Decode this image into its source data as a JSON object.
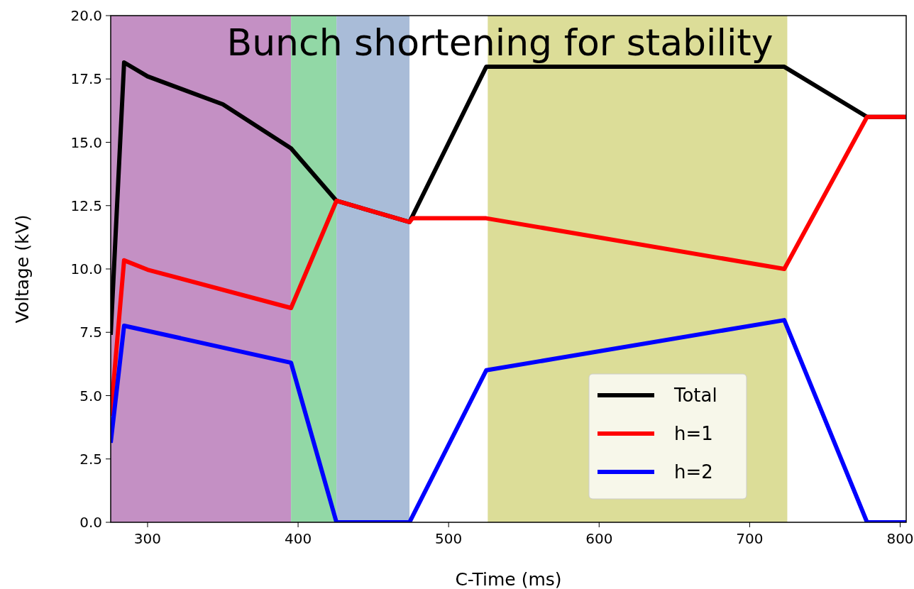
{
  "chart_data": {
    "type": "line",
    "title": "Bunch shortening for stability",
    "xlabel": "C-Time (ms)",
    "ylabel": "Voltage (kV)",
    "xlim": [
      275.5,
      804
    ],
    "ylim": [
      0,
      20
    ],
    "xticks": [
      300,
      400,
      500,
      600,
      700,
      800
    ],
    "yticks": [
      {
        "value": 0,
        "label": "0.0"
      },
      {
        "value": 2.5,
        "label": "2.5"
      },
      {
        "value": 5,
        "label": "5.0"
      },
      {
        "value": 7.5,
        "label": "7.5"
      },
      {
        "value": 10,
        "label": "10.0"
      },
      {
        "value": 12.5,
        "label": "12.5"
      },
      {
        "value": 15,
        "label": "15.0"
      },
      {
        "value": 17.5,
        "label": "17.5"
      },
      {
        "value": 20,
        "label": "20.0"
      }
    ],
    "grid": false,
    "legend": "bottom right",
    "bands": [
      {
        "axis": "x",
        "from": 275.5,
        "to": 395.3,
        "color": "#c490c4"
      },
      {
        "axis": "x",
        "from": 395.3,
        "to": 425.5,
        "color": "#92d8a6"
      },
      {
        "axis": "x",
        "from": 425.5,
        "to": 474,
        "color": "#a9bcd8"
      },
      {
        "axis": "x",
        "from": 526,
        "to": 725,
        "color": "#dcdd98"
      }
    ],
    "series": [
      {
        "name": "Total",
        "color": "#000000",
        "x": [
          275.5,
          284.4,
          300,
          350,
          395.3,
          425.5,
          474,
          525,
          723,
          778,
          804
        ],
        "values": [
          7.4,
          18.15,
          17.6,
          16.5,
          14.76,
          12.69,
          11.85,
          17.98,
          17.98,
          16.0,
          16.0
        ]
      },
      {
        "name": "h=1",
        "color": "#ff0000",
        "x": [
          275.5,
          284.4,
          300,
          395.3,
          425.5,
          474,
          476,
          525,
          723,
          778,
          804
        ],
        "values": [
          4.2,
          10.34,
          9.97,
          8.46,
          12.69,
          11.85,
          12.0,
          12.0,
          10.0,
          16.0,
          16.0
        ]
      },
      {
        "name": "h=2",
        "color": "#0000ff",
        "x": [
          275.5,
          284.4,
          395.3,
          425.5,
          474,
          525,
          723,
          778,
          804
        ],
        "values": [
          3.14,
          7.76,
          6.3,
          0,
          0,
          6.0,
          7.98,
          0,
          0
        ]
      }
    ]
  }
}
